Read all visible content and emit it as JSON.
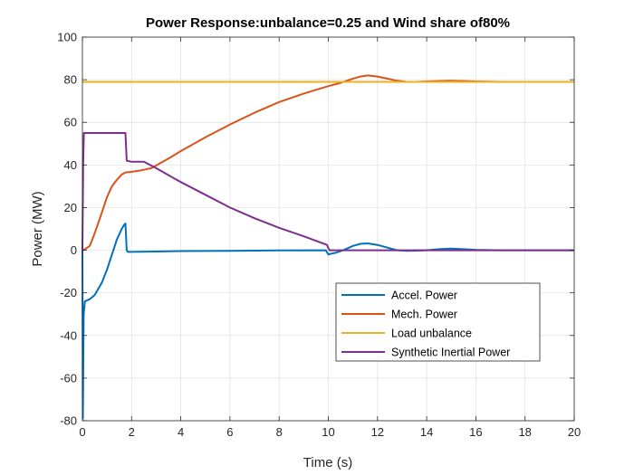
{
  "chart_data": {
    "type": "line",
    "title": "Power Response:unbalance=0.25 and Wind share of80%",
    "xlabel": "Time (s)",
    "ylabel": "Power (MW)",
    "xlim": [
      0,
      20
    ],
    "ylim": [
      -80,
      100
    ],
    "xticks": [
      0,
      2,
      4,
      6,
      8,
      10,
      12,
      14,
      16,
      18,
      20
    ],
    "yticks": [
      -80,
      -60,
      -40,
      -20,
      0,
      20,
      40,
      60,
      80,
      100
    ],
    "grid": true,
    "legend_position": "lower-right",
    "series": [
      {
        "name": "Accel. Power",
        "color": "#0072BD",
        "x": [
          0,
          0.02,
          0.05,
          0.1,
          0.3,
          0.5,
          0.8,
          1.0,
          1.2,
          1.4,
          1.6,
          1.7,
          1.75,
          1.8,
          1.85,
          2.0,
          3,
          4,
          6,
          8,
          9.9,
          10.0,
          10.05,
          10.3,
          10.6,
          11.0,
          11.3,
          11.6,
          12.0,
          12.4,
          12.8,
          13.2,
          13.6,
          14.0,
          14.5,
          15.0,
          15.5,
          16.0,
          17,
          18,
          19,
          20
        ],
        "y": [
          0,
          -79,
          -30,
          -24,
          -23,
          -21,
          -15,
          -9,
          -2,
          5,
          10,
          12,
          12.5,
          0,
          -0.8,
          -0.8,
          -0.6,
          -0.4,
          -0.3,
          -0.1,
          0,
          -2,
          -1.8,
          -1.2,
          0,
          2,
          3,
          3.2,
          2.5,
          1.2,
          0,
          -0.3,
          -0.2,
          0,
          0.5,
          0.8,
          0.5,
          0.2,
          0,
          0,
          0,
          0
        ]
      },
      {
        "name": "Mech. Power",
        "color": "#D95319",
        "x": [
          0,
          0.1,
          0.3,
          0.5,
          0.8,
          1.0,
          1.2,
          1.4,
          1.6,
          1.75,
          2.0,
          2.4,
          2.8,
          3.5,
          4.0,
          5.0,
          6.0,
          7.0,
          8.0,
          9.0,
          10.0,
          10.5,
          11.0,
          11.3,
          11.6,
          12.0,
          12.4,
          12.8,
          13.2,
          13.6,
          14.0,
          15.0,
          16.0,
          17,
          18,
          19,
          20
        ],
        "y": [
          0,
          0.5,
          2,
          8,
          18,
          25,
          30,
          33,
          35.5,
          36.5,
          36.8,
          37.5,
          38.5,
          43,
          46.5,
          53,
          59,
          64.5,
          69.5,
          73.5,
          77,
          78.5,
          80.5,
          81.5,
          82,
          81.5,
          80.5,
          79.5,
          79,
          79,
          79.2,
          79.5,
          79.2,
          79,
          79,
          79,
          79
        ]
      },
      {
        "name": "Load unbalance",
        "color": "#EDB120",
        "x": [
          0,
          20
        ],
        "y": [
          79,
          79
        ]
      },
      {
        "name": "Synthetic Inertial Power",
        "color": "#7E2F8E",
        "x": [
          0,
          0.03,
          0.06,
          0.1,
          1.0,
          1.7,
          1.75,
          1.8,
          2.0,
          2.5,
          3.0,
          4.0,
          5.0,
          6.0,
          7.0,
          8.0,
          9.0,
          9.95,
          10.0,
          10.05,
          11,
          12,
          14,
          16,
          18,
          20
        ],
        "y": [
          0,
          40,
          55,
          55,
          55,
          55,
          55,
          42,
          41.5,
          41.5,
          38.5,
          32,
          26,
          20,
          15,
          10.5,
          6.5,
          2.5,
          1,
          0,
          0,
          0,
          0,
          0,
          0,
          0
        ]
      }
    ]
  }
}
